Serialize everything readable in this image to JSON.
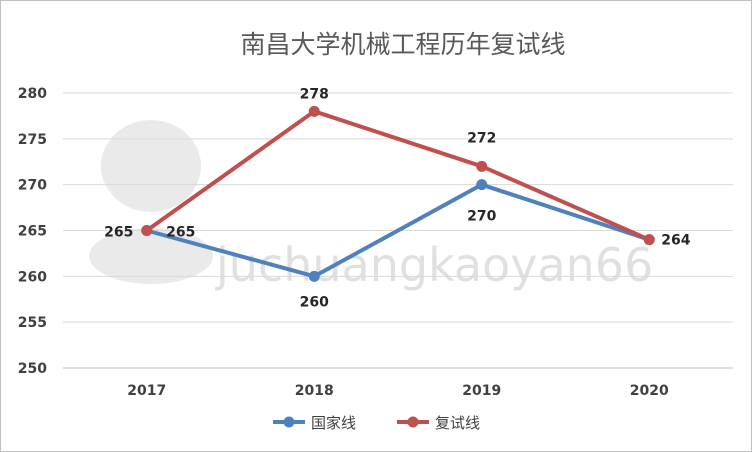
{
  "chart_data": {
    "type": "line",
    "title": "南昌大学机械工程历年复试线",
    "categories": [
      "2017",
      "2018",
      "2019",
      "2020"
    ],
    "series": [
      {
        "name": "国家线",
        "color": "#4f81bd",
        "values": [
          265,
          260,
          270,
          264
        ]
      },
      {
        "name": "复试线",
        "color": "#c0504d",
        "values": [
          265,
          278,
          272,
          264
        ]
      }
    ],
    "ylim": [
      250,
      280
    ],
    "yticks": [
      250,
      255,
      260,
      265,
      270,
      275,
      280
    ],
    "grid": true,
    "legend_position": "bottom",
    "watermark": "juchuangkaoyan66"
  }
}
